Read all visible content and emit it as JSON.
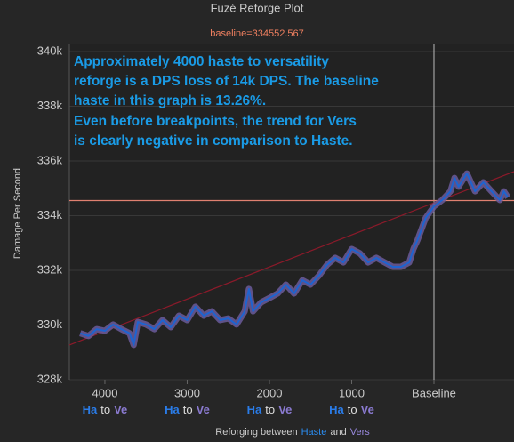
{
  "chart_data": {
    "type": "line",
    "title": "Fuzé Reforge Plot",
    "subtitle": "baseline=334552.567",
    "baseline": 334552.567,
    "y_label": "Damage Per Second",
    "x_label": [
      "Reforging between",
      "Haste",
      "and",
      "Vers"
    ],
    "tick_sublabel": [
      "Ha",
      "to",
      "Ve"
    ],
    "annotation": [
      "Approximately 4000 haste to versatility",
      "reforge is a DPS loss of 14k DPS. The baseline",
      "haste in this graph is 13.26%.",
      "Even before breakpoints, the trend for Vers",
      "is clearly negative in comparison to Haste."
    ],
    "xlim": [
      4432,
      -973
    ],
    "xticks": [
      4000,
      3000,
      2000,
      1000,
      {
        "value": 0,
        "label": "Baseline"
      }
    ],
    "ylim": [
      328000,
      340000
    ],
    "yticks": [
      {
        "value": 328000,
        "label": "328k"
      },
      {
        "value": 330000,
        "label": "330k"
      },
      {
        "value": 332000,
        "label": "332k"
      },
      {
        "value": 334000,
        "label": "334k"
      },
      {
        "value": 336000,
        "label": "336k"
      },
      {
        "value": 338000,
        "label": "338k"
      },
      {
        "value": 340000,
        "label": "340k"
      }
    ],
    "grid": true,
    "trendline": {
      "x": [
        4432,
        -973
      ],
      "y": [
        329270,
        335610
      ],
      "color": "#8b1a2a"
    },
    "baseline_color": "#e08070",
    "x": [
      4300,
      4200,
      4100,
      4000,
      3900,
      3800,
      3700,
      3650,
      3600,
      3500,
      3400,
      3300,
      3200,
      3100,
      3000,
      2900,
      2800,
      2700,
      2600,
      2500,
      2400,
      2300,
      2250,
      2200,
      2100,
      2000,
      1900,
      1800,
      1700,
      1600,
      1500,
      1400,
      1300,
      1200,
      1100,
      1000,
      900,
      800,
      700,
      600,
      500,
      400,
      300,
      250,
      200,
      100,
      0,
      -100,
      -200,
      -250,
      -300,
      -400,
      -500,
      -600,
      -700,
      -800,
      -850,
      -900
    ],
    "series": [
      {
        "color": "#1e64d0",
        "band_color": "#6a5a9a",
        "values": [
          329700,
          329600,
          329850,
          329790,
          330020,
          329850,
          329700,
          329270,
          330110,
          330020,
          329850,
          330180,
          329920,
          330340,
          330180,
          330670,
          330340,
          330500,
          330180,
          330240,
          330020,
          330500,
          331320,
          330500,
          330830,
          330990,
          331150,
          331480,
          331150,
          331640,
          331480,
          331800,
          332200,
          332460,
          332290,
          332780,
          332620,
          332290,
          332460,
          332290,
          332130,
          332130,
          332290,
          332780,
          333110,
          333920,
          334340,
          334570,
          334890,
          335380,
          335060,
          335540,
          334890,
          335220,
          334890,
          334570,
          334890,
          334670
        ]
      }
    ]
  }
}
